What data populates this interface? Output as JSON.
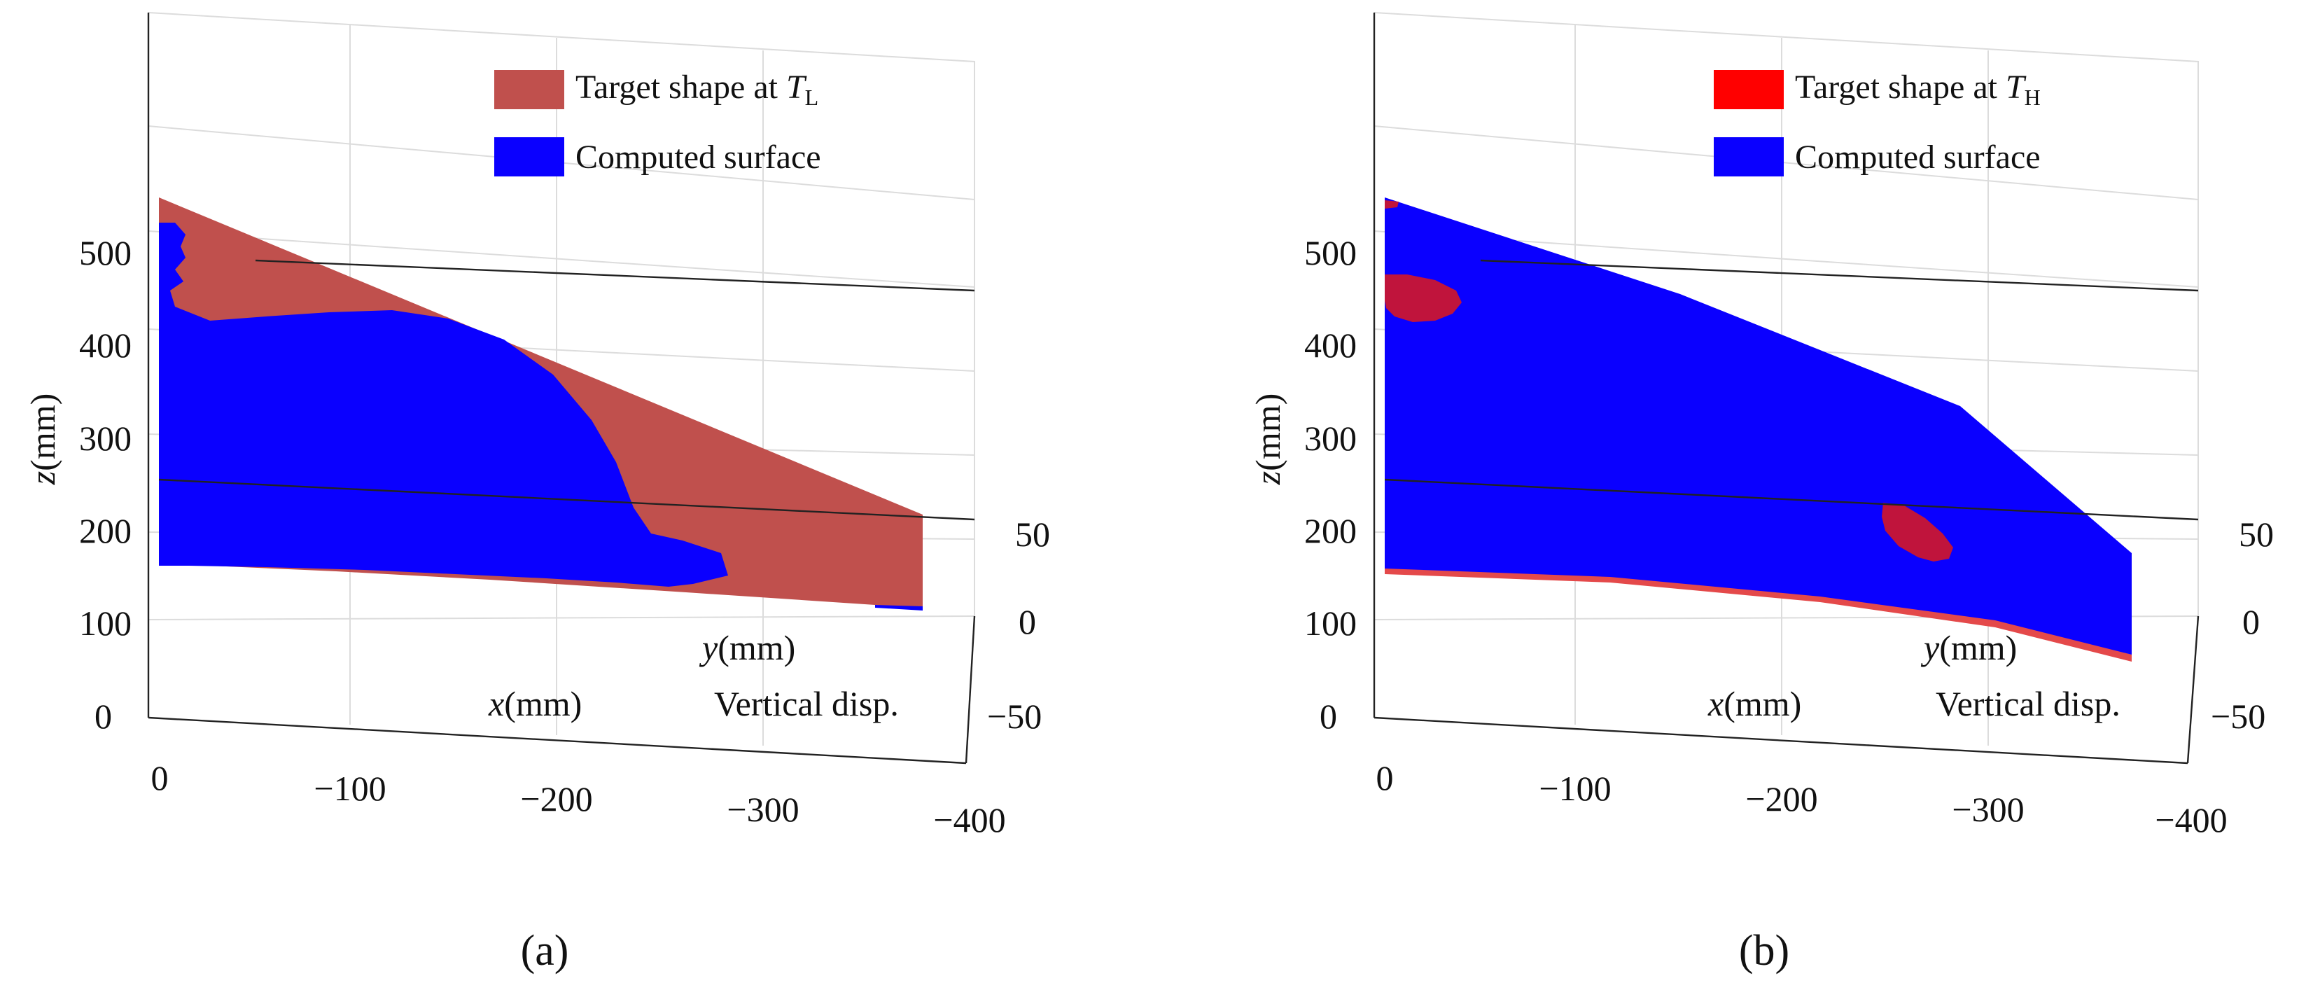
{
  "chart_data": [
    {
      "type": "surface3d",
      "panel_label": "(a)",
      "legend": [
        {
          "key": "target",
          "label": "Target shape at ",
          "symbol": "T",
          "subscript": "L",
          "color": "#c0504d"
        },
        {
          "key": "computed",
          "label": "Computed surface",
          "color": "#0a00ff"
        }
      ],
      "xlabel": "x(mm)",
      "ylabel": "y(mm)",
      "zlabel": "z(mm)",
      "extra_label": "Vertical disp.",
      "x_ticks": [
        "0",
        "−100",
        "−200",
        "−300",
        "−400"
      ],
      "y_ticks": [
        "50",
        "0",
        "−50"
      ],
      "z_ticks": [
        "500",
        "400",
        "300",
        "200",
        "100",
        "0"
      ],
      "xlim": [
        0,
        -400
      ],
      "ylim": [
        -50,
        50
      ],
      "zlim": [
        0,
        550
      ]
    },
    {
      "type": "surface3d",
      "panel_label": "(b)",
      "legend": [
        {
          "key": "target",
          "label": "Target shape at ",
          "symbol": "T",
          "subscript": "H",
          "color": "#ff0000"
        },
        {
          "key": "computed",
          "label": "Computed surface",
          "color": "#0a00ff"
        }
      ],
      "xlabel": "x(mm)",
      "ylabel": "y(mm)",
      "zlabel": "z(mm)",
      "extra_label": "Vertical disp.",
      "x_ticks": [
        "0",
        "−100",
        "−200",
        "−300",
        "−400"
      ],
      "y_ticks": [
        "50",
        "0",
        "−50"
      ],
      "z_ticks": [
        "500",
        "400",
        "300",
        "200",
        "100",
        "0"
      ],
      "xlim": [
        0,
        -400
      ],
      "ylim": [
        -50,
        50
      ],
      "zlim": [
        0,
        550
      ]
    }
  ]
}
